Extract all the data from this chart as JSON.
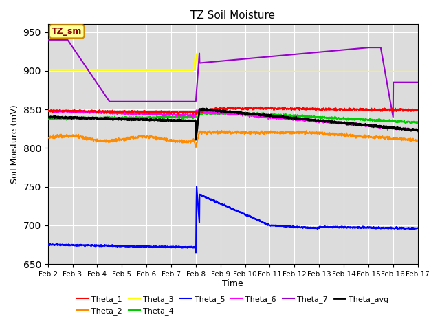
{
  "title": "TZ Soil Moisture",
  "xlabel": "Time",
  "ylabel": "Soil Moisture (mV)",
  "ylim": [
    650,
    960
  ],
  "yticks": [
    650,
    700,
    750,
    800,
    850,
    900,
    950
  ],
  "background_color": "#dcdcdc",
  "legend_box_label": "TZ_sm",
  "legend_box_color": "#ffff99",
  "legend_box_border_color": "#cc8800",
  "legend_box_text_color": "#8b0000",
  "series": {
    "Theta_1": {
      "color": "#ff0000"
    },
    "Theta_2": {
      "color": "#ff8c00"
    },
    "Theta_3": {
      "color": "#ffff00"
    },
    "Theta_4": {
      "color": "#00cc00"
    },
    "Theta_5": {
      "color": "#0000ff"
    },
    "Theta_6": {
      "color": "#ff00ff"
    },
    "Theta_7": {
      "color": "#9900cc"
    },
    "Theta_avg": {
      "color": "#000000"
    }
  },
  "date_labels": [
    "Feb 2",
    "Feb 3",
    "Feb 4",
    "Feb 5",
    "Feb 6",
    "Feb 7",
    "Feb 8",
    "Feb 9",
    "Feb 10",
    "Feb 11",
    "Feb 12",
    "Feb 13",
    "Feb 14",
    "Feb 15",
    "Feb 16",
    "Feb 17"
  ]
}
